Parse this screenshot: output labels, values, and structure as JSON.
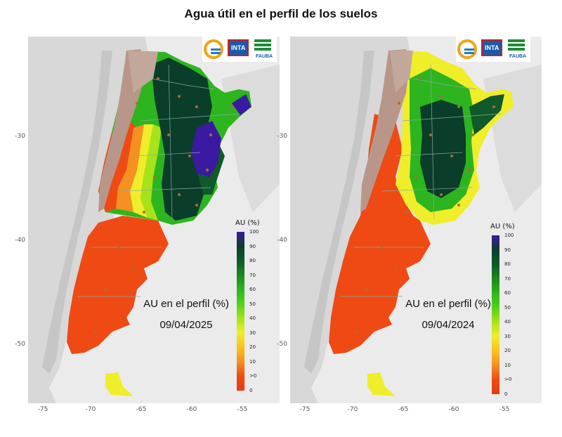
{
  "title": "Agua útil en el perfil de los suelos",
  "map_label": "AU en el perfil (%)",
  "panels": [
    {
      "date": "09/04/2025"
    },
    {
      "date": "09/04/2024"
    }
  ],
  "axes": {
    "lat_ticks": [
      "-30",
      "-40",
      "-50"
    ],
    "lon_ticks": [
      "-75",
      "-70",
      "-65",
      "-60",
      "-55"
    ]
  },
  "legend": {
    "title": "AU (%)",
    "ticks": [
      "100",
      "90",
      "80",
      "70",
      "60",
      "50",
      "40",
      "30",
      "20",
      "10",
      ">0",
      "0"
    ],
    "colors": [
      "#3a1aa0",
      "#0b3d2b",
      "#0e5a2a",
      "#1a8a1a",
      "#2db51f",
      "#53d11a",
      "#a8e21a",
      "#f0ee2a",
      "#f8c21c",
      "#f69020",
      "#ef4a14",
      "#e83a10"
    ]
  },
  "logos": {
    "inta": "INTA",
    "fauba": "FAUBA",
    "icons": [
      "sun-wave-logo-icon",
      "inta-logo-icon",
      "fauba-logo-icon"
    ]
  }
}
